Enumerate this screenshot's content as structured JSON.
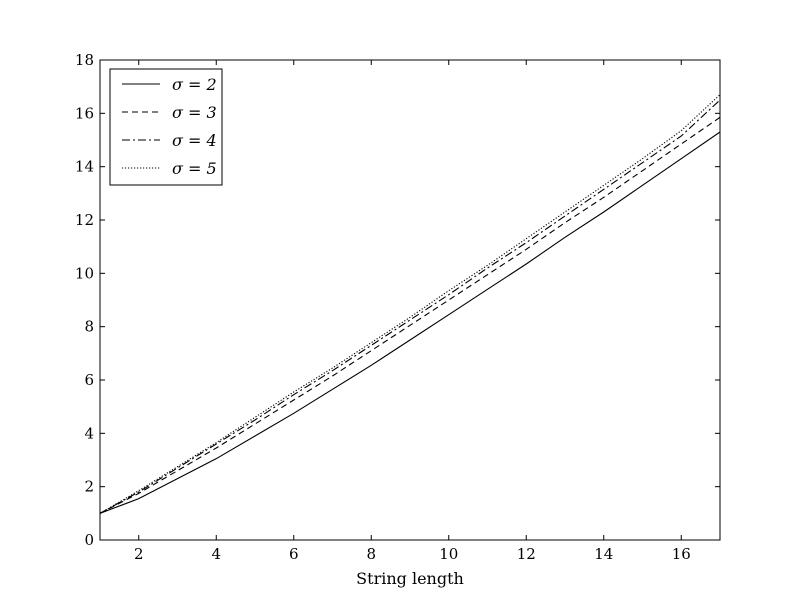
{
  "chart_data": {
    "type": "line",
    "title": "",
    "xlabel": "String length",
    "ylabel": "",
    "xlim": [
      1,
      17
    ],
    "ylim": [
      0,
      18
    ],
    "x_ticks": [
      "2",
      "4",
      "6",
      "8",
      "10",
      "12",
      "14",
      "16"
    ],
    "y_ticks": [
      "0",
      "2",
      "4",
      "6",
      "8",
      "10",
      "12",
      "14",
      "16",
      "18"
    ],
    "grid": false,
    "legend_position": "top-left",
    "x": [
      1,
      2,
      3,
      4,
      5,
      6,
      7,
      8,
      9,
      10,
      11,
      12,
      13,
      14,
      15,
      16,
      17
    ],
    "series": [
      {
        "name": "σ = 2",
        "style": "solid",
        "values": [
          1.0,
          1.55,
          2.3,
          3.05,
          3.9,
          4.75,
          5.65,
          6.55,
          7.5,
          8.45,
          9.4,
          10.35,
          11.35,
          12.3,
          13.3,
          14.3,
          15.3
        ]
      },
      {
        "name": "σ = 3",
        "style": "dashed",
        "values": [
          1.0,
          1.75,
          2.6,
          3.45,
          4.35,
          5.25,
          6.15,
          7.1,
          8.05,
          9.0,
          9.95,
          10.9,
          11.9,
          12.85,
          13.85,
          14.85,
          15.85
        ]
      },
      {
        "name": "σ = 4",
        "style": "dashdot",
        "values": [
          1.0,
          1.8,
          2.7,
          3.6,
          4.5,
          5.45,
          6.35,
          7.3,
          8.25,
          9.2,
          10.2,
          11.15,
          12.15,
          13.15,
          14.15,
          15.15,
          16.5
        ]
      },
      {
        "name": "σ = 5",
        "style": "dotted",
        "values": [
          1.0,
          1.85,
          2.75,
          3.65,
          4.6,
          5.55,
          6.45,
          7.4,
          8.35,
          9.35,
          10.3,
          11.3,
          12.3,
          13.3,
          14.3,
          15.35,
          16.7
        ]
      }
    ]
  }
}
